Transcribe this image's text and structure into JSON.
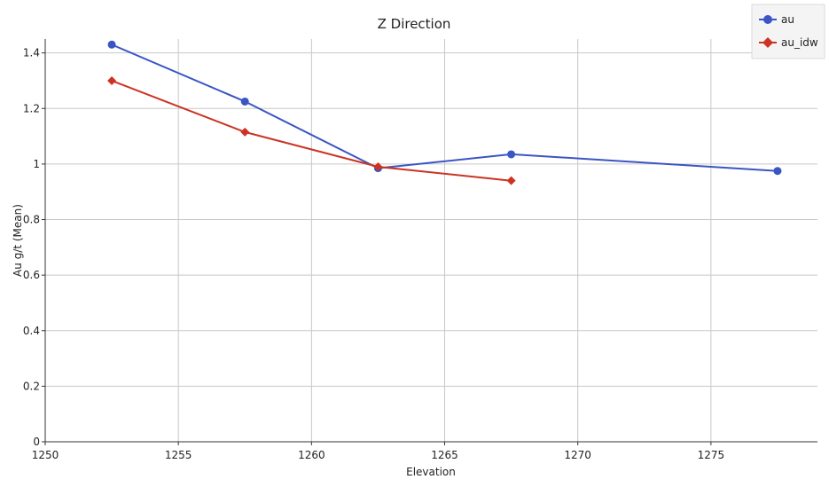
{
  "chart_data": {
    "type": "line",
    "title": "Z Direction",
    "xlabel": "Elevation",
    "ylabel": "Au g/t (Mean)",
    "xlim": [
      1250,
      1279
    ],
    "ylim": [
      0,
      1.45
    ],
    "x_ticks": [
      1250,
      1255,
      1260,
      1265,
      1270,
      1275
    ],
    "y_ticks": [
      0,
      0.2,
      0.4,
      0.6,
      0.8,
      1,
      1.2,
      1.4
    ],
    "x_tick_labels": [
      "1250",
      "1255",
      "1260",
      "1265",
      "1270",
      "1275"
    ],
    "y_tick_labels": [
      "0",
      "0.2",
      "0.4",
      "0.6",
      "0.8",
      "1",
      "1.2",
      "1.4"
    ],
    "grid": true,
    "legend_position": "top-right",
    "series": [
      {
        "name": "au",
        "color": "#3a55c4",
        "marker": "circle",
        "x": [
          1252.5,
          1257.5,
          1262.5,
          1267.5,
          1277.5
        ],
        "y": [
          1.43,
          1.225,
          0.985,
          1.035,
          0.975
        ]
      },
      {
        "name": "au_idw",
        "color": "#cc3322",
        "marker": "diamond",
        "x": [
          1252.5,
          1257.5,
          1262.5,
          1267.5
        ],
        "y": [
          1.3,
          1.115,
          0.99,
          0.94
        ]
      }
    ]
  }
}
